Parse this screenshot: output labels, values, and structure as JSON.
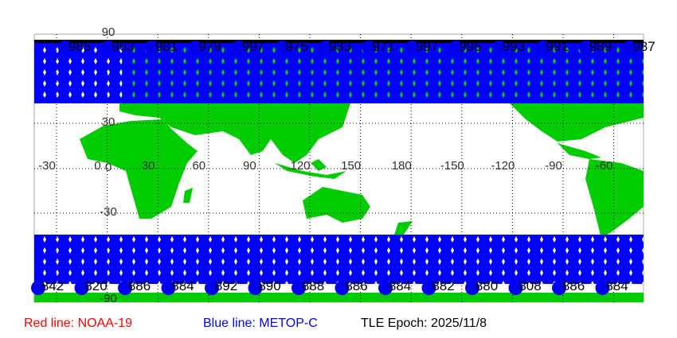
{
  "map": {
    "longitude_labels": [
      "-30",
      "0",
      "30",
      "60",
      "90",
      "120",
      "150",
      "180",
      "-150",
      "-120",
      "-90",
      "-60"
    ],
    "latitude_labels": [
      "90",
      "30",
      "0",
      "-30",
      "-90"
    ],
    "top_orbit_labels": [
      "985",
      "963",
      "981",
      "979",
      "997",
      "975",
      "933",
      "971",
      "997",
      "995",
      "993",
      "991",
      "989",
      "987"
    ],
    "bottom_orbit_labels": [
      "842",
      "820",
      "886",
      "884",
      "892",
      "890",
      "888",
      "886",
      "884",
      "882",
      "880",
      "808",
      "886",
      "884"
    ],
    "colors": {
      "land": "#00cc00",
      "ocean": "#ffffff",
      "noaa19": "#ff0000",
      "metopc": "#0000ff",
      "grid": "#000000"
    }
  },
  "legend": {
    "red_line": "Red line: NOAA-19",
    "blue_line": "Blue line: METOP-C",
    "epoch": "TLE Epoch: 2025/11/8"
  }
}
